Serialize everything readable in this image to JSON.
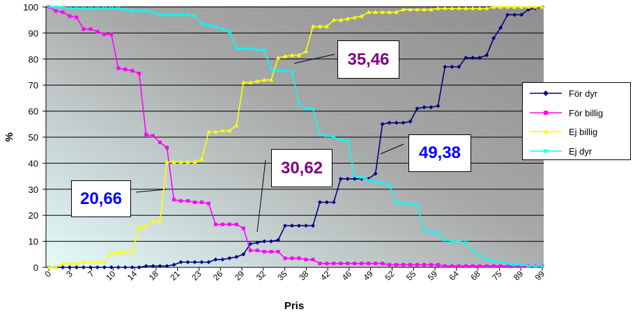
{
  "chart_data": {
    "type": "line",
    "xlabel": "Pris",
    "ylabel": "%",
    "ylim": [
      0,
      100
    ],
    "yticks": [
      0,
      10,
      20,
      30,
      40,
      50,
      60,
      70,
      80,
      90,
      100
    ],
    "x_ticklabels": [
      "0",
      "3",
      "7",
      "10",
      "14",
      "18",
      "21",
      "23",
      "26",
      "29",
      "32",
      "35",
      "38",
      "42",
      "46",
      "49",
      "52",
      "55",
      "59",
      "64",
      "68",
      "75",
      "89",
      "99"
    ],
    "background": "gradient cyan to gray",
    "grid": true,
    "legend_position": "right",
    "series": [
      {
        "name": "För dyr",
        "color": "#000080",
        "marker": "diamond",
        "values": [
          0,
          0,
          0,
          0,
          0,
          0,
          0,
          0,
          0,
          0,
          0,
          0,
          0,
          0,
          0.5,
          0.5,
          0.5,
          0.5,
          1,
          2,
          2,
          2,
          2,
          2,
          3,
          3,
          3.5,
          4,
          5,
          9,
          9.5,
          10,
          10,
          10.5,
          16,
          16,
          16,
          16,
          16,
          25,
          25,
          25,
          34,
          34,
          34,
          34,
          34,
          36,
          55,
          55.5,
          55.5,
          55.5,
          56,
          61,
          61.5,
          61.5,
          62,
          77,
          77,
          77,
          80.5,
          80.5,
          80.5,
          81.5,
          88,
          92,
          97,
          97,
          97,
          99,
          99.5,
          100
        ]
      },
      {
        "name": "För billig",
        "color": "#ff00ff",
        "marker": "square",
        "values": [
          100,
          98.5,
          98,
          96.5,
          96,
          91.5,
          91.5,
          90.5,
          89.5,
          89.5,
          76.5,
          76,
          75.5,
          74.5,
          51,
          50.5,
          48,
          46,
          26,
          25.5,
          25.5,
          25,
          25,
          24.5,
          16.5,
          16.5,
          16.5,
          16.5,
          15,
          6.5,
          6.5,
          6,
          6,
          6,
          3.5,
          3.5,
          3.5,
          3,
          3,
          1.5,
          1.5,
          1.5,
          1.5,
          1.5,
          1.5,
          1.5,
          1.5,
          1.5,
          1.5,
          1,
          1,
          1,
          1,
          1,
          1,
          1,
          1,
          0.5,
          0.5,
          0.5,
          0.5,
          0.5,
          0.5,
          0.5,
          0.5,
          0.5,
          0.5,
          0.5,
          0.5,
          0.5,
          0.5,
          0.5
        ]
      },
      {
        "name": "Ej billig",
        "color": "#ffff00",
        "marker": "triangle",
        "values": [
          0,
          0,
          1.5,
          1.5,
          1.5,
          2,
          2,
          2,
          2,
          5.5,
          5.5,
          6,
          6,
          15.5,
          16,
          17.5,
          18,
          40.5,
          40.5,
          40.5,
          40.5,
          40.5,
          41.5,
          52,
          52,
          52.5,
          52.5,
          54.5,
          71,
          71,
          71.5,
          72,
          72,
          80.5,
          81,
          81.5,
          81.5,
          83,
          92.5,
          92.5,
          92.5,
          95,
          95,
          95.5,
          96,
          96.5,
          98,
          98,
          98,
          98,
          98,
          99,
          99,
          99,
          99,
          99,
          99.5,
          99.5,
          99.5,
          99.5,
          99.5,
          99.5,
          99.5,
          99.5,
          100,
          100,
          100,
          100,
          100,
          100,
          100,
          100
        ]
      },
      {
        "name": "Ej dyr",
        "color": "#00ffff",
        "marker": "x",
        "values": [
          100,
          100,
          100,
          99.5,
          99.5,
          99.5,
          99.5,
          99.5,
          99.5,
          99.5,
          99.5,
          99,
          98.5,
          98.5,
          98.5,
          98,
          97,
          97,
          97,
          97,
          97,
          96.5,
          93.5,
          93,
          92.5,
          91.5,
          90.5,
          84,
          84,
          84,
          83.5,
          83.5,
          76,
          75.5,
          75.5,
          75,
          62.5,
          61,
          61,
          51,
          50.5,
          50,
          49,
          48.5,
          35,
          34.5,
          33.5,
          33,
          32.5,
          31.5,
          25,
          24.5,
          24.5,
          23.5,
          14,
          13.5,
          13.5,
          10.5,
          10,
          10,
          9.5,
          6.5,
          4.5,
          3,
          2.5,
          2,
          1.5,
          1,
          1,
          0.5,
          0.5,
          0.5
        ]
      }
    ]
  },
  "annotations": [
    {
      "label": "20,66",
      "color": "#0000ff"
    },
    {
      "label": "30,62",
      "color": "#800080"
    },
    {
      "label": "35,46",
      "color": "#800080"
    },
    {
      "label": "49,38",
      "color": "#0000ff"
    }
  ]
}
